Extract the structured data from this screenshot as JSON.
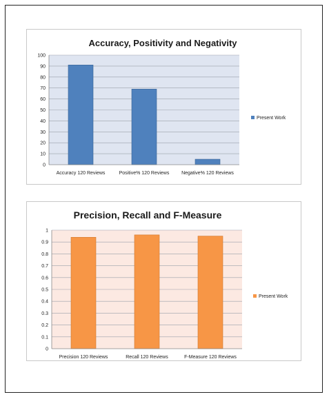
{
  "chart_data": [
    {
      "type": "bar",
      "title": "Accuracy, Positivity and Negativity",
      "categories": [
        "Accuracy 120 Reviews",
        "Positive% 120 Reviews",
        "Negative% 120 Reviews"
      ],
      "series": [
        {
          "name": "Present Work",
          "values": [
            91,
            69,
            5
          ],
          "color": "#4f81bd"
        }
      ],
      "ylim": [
        0,
        100
      ],
      "yticks": [
        "0",
        "10",
        "20",
        "30",
        "40",
        "50",
        "60",
        "70",
        "80",
        "90",
        "100"
      ],
      "ytick_values": [
        0,
        10,
        20,
        30,
        40,
        50,
        60,
        70,
        80,
        90,
        100
      ],
      "plot_background": "#dfe5f1",
      "grid": true,
      "legend_position": "right"
    },
    {
      "type": "bar",
      "title": "Precision, Recall and F-Measure",
      "categories": [
        "Precision 120 Reviews",
        "Recall 120 Reviews",
        "F-Measure 120 Reviews"
      ],
      "series": [
        {
          "name": "Present Work",
          "values": [
            0.94,
            0.96,
            0.95
          ],
          "color": "#f79646"
        }
      ],
      "ylim": [
        0,
        1
      ],
      "yticks": [
        "0",
        "0.1",
        "0.2",
        "0.3",
        "0.4",
        "0.5",
        "0.6",
        "0.7",
        "0.8",
        "0.9",
        "1"
      ],
      "ytick_values": [
        0,
        0.1,
        0.2,
        0.3,
        0.4,
        0.5,
        0.6,
        0.7,
        0.8,
        0.9,
        1
      ],
      "plot_background": "#fce9e2",
      "grid": true,
      "legend_position": "right"
    }
  ]
}
